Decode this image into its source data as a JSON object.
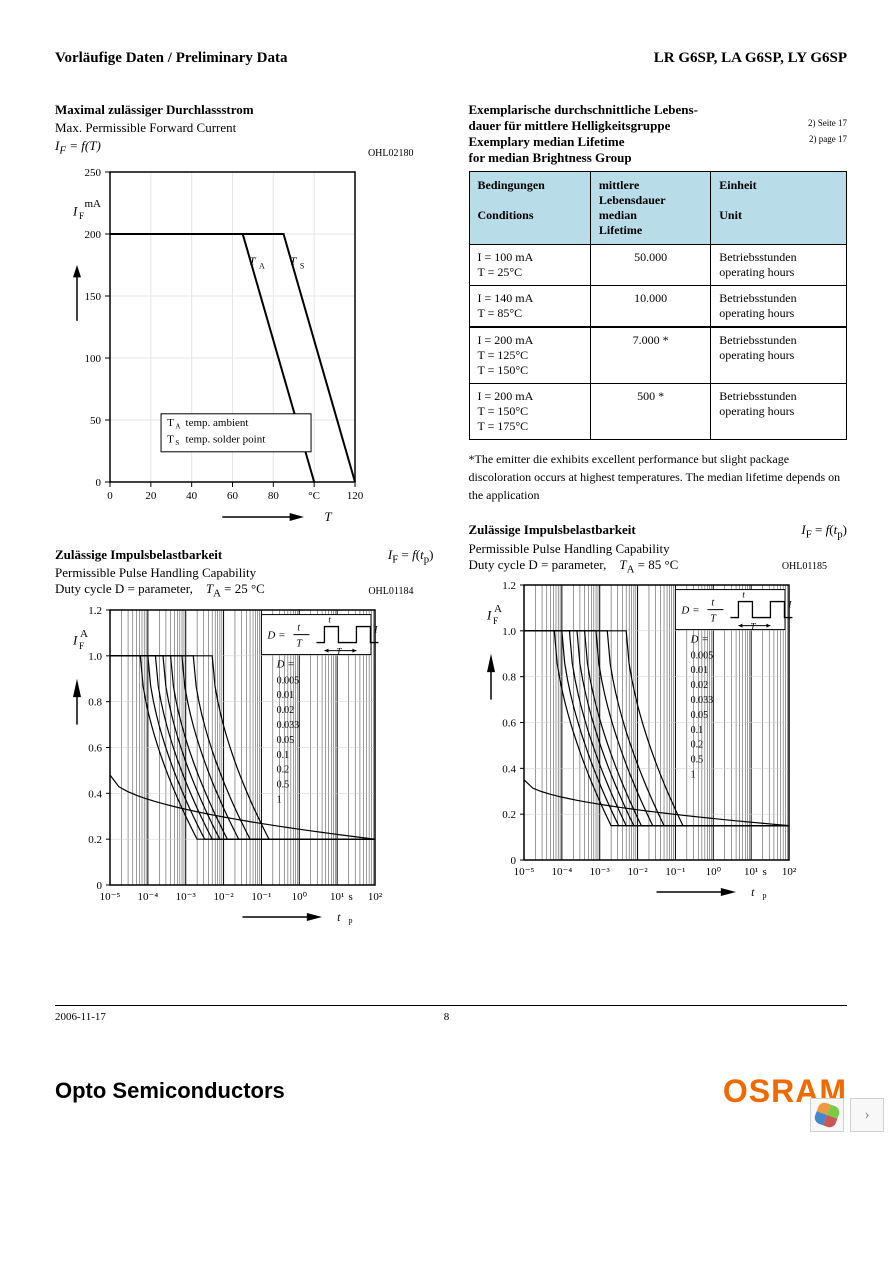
{
  "header": {
    "left": "Vorläufige Daten / Preliminary Data",
    "right": "LR G6SP, LA G6SP, LY G6SP"
  },
  "chart1": {
    "title_de": "Maximal zulässiger Durchlassstrom",
    "title_en": "Max. Permissible Forward Current",
    "formula": "I_F = f(T)",
    "chart_id": "OHL02180",
    "y_label": "I_F",
    "y_unit": "mA",
    "y_max_label": "250",
    "y_ticks": [
      0,
      50,
      100,
      150,
      200,
      250
    ],
    "x_label": "T",
    "x_unit": "°C",
    "x_ticks": [
      0,
      20,
      40,
      60,
      80,
      100,
      120
    ],
    "x_unit_pos": 100,
    "series": [
      {
        "label": "T_A",
        "points": [
          [
            0,
            200
          ],
          [
            65,
            200
          ],
          [
            100,
            0
          ]
        ]
      },
      {
        "label": "T_S",
        "points": [
          [
            0,
            200
          ],
          [
            85,
            200
          ],
          [
            120,
            0
          ]
        ]
      }
    ],
    "legend": [
      "T_A temp. ambient",
      "T_S temp. solder point"
    ],
    "bg": "#ffffff",
    "grid": "#e5e5e5",
    "line": "#000000"
  },
  "lifetime": {
    "title_de1": "Exemplarische durchschnittliche Lebens-",
    "title_de2": "dauer für mittlere Helligkeitsgruppe",
    "title_en1": "Exemplary median Lifetime",
    "title_en2": "for median Brightness Group",
    "ref1": "2) Seite 17",
    "ref2": "2) page 17",
    "headers": {
      "c1a": "Bedingungen",
      "c1b": "Conditions",
      "c2a": "mittlere",
      "c2b": "Lebensdauer",
      "c2c": "median",
      "c2d": "Lifetime",
      "c3a": "Einheit",
      "c3b": "Unit"
    },
    "rows": [
      {
        "cond": [
          "I  = 100 mA",
          "T  = 25°C"
        ],
        "life": "50.000",
        "unit": [
          "Betriebsstunden",
          "operating hours"
        ]
      },
      {
        "cond": [
          "I  = 140 mA",
          "T  = 85°C"
        ],
        "life": "10.000",
        "unit": [
          "Betriebsstunden",
          "operating hours"
        ]
      },
      {
        "cond": [
          "I  = 200 mA",
          "T  = 125°C",
          "T  = 150°C"
        ],
        "life": "7.000  *",
        "unit": [
          "Betriebsstunden",
          "operating hours"
        ]
      },
      {
        "cond": [
          "I  = 200 mA",
          "T  = 150°C",
          "T  = 175°C"
        ],
        "life": "500  *",
        "unit": [
          "Betriebsstunden",
          "operating hours"
        ]
      }
    ],
    "note": "*The emitter die exhibits excellent performance but slight package discoloration occurs at highest temperatures. The median lifetime depends on the application",
    "header_bg": "#b8dce8"
  },
  "pulse_common": {
    "title_de": "Zulässige Impulsbelastbarkeit",
    "title_en": "Permissible Pulse Handling Capability",
    "formula": "I_F = f(t_p)",
    "dc_label": "Duty cycle    D = parameter,",
    "y_label": "I_F",
    "y_unit": "A",
    "y_ticks": [
      "0",
      "0.2",
      "0.4",
      "0.6",
      "0.8",
      "1.0",
      "1.2"
    ],
    "x_label": "t_p",
    "x_ticks": [
      "10⁻⁵",
      "10⁻⁴",
      "10⁻³",
      "10⁻²",
      "10⁻¹",
      "10⁰",
      "10¹",
      "10²"
    ],
    "x_unit": "s",
    "d_label": "D =",
    "d_values": [
      "0.005",
      "0.01",
      "0.02",
      "0.033",
      "0.05",
      "0.1",
      "0.2",
      "0.5",
      "1"
    ],
    "inset_formula": "D = t/T"
  },
  "pulse1": {
    "ta": "T_A = 25 °C",
    "chart_id": "OHL01184",
    "flat_y": 0.2,
    "dc1_start": 0.48
  },
  "pulse2": {
    "ta": "T_A = 85 °C",
    "chart_id": "OHL01185",
    "flat_y": 0.15,
    "dc1_start": 0.35
  },
  "footer": {
    "date": "2006-11-17",
    "page": "8",
    "brand_left": "Opto Semiconductors",
    "brand_right": "OSRAM"
  }
}
